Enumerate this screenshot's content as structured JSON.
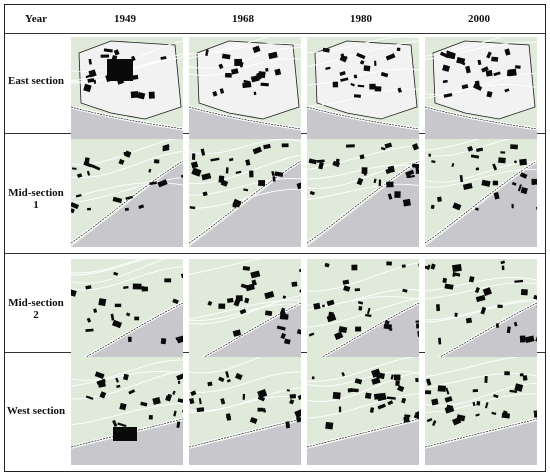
{
  "header": {
    "year_label": "Year",
    "years": [
      "1949",
      "1968",
      "1980",
      "2000"
    ]
  },
  "rows": [
    {
      "label": "East section"
    },
    {
      "label": "Mid-section 1"
    },
    {
      "label": "Mid-section 2"
    },
    {
      "label": "West section"
    }
  ],
  "colors": {
    "land": "#dfeadb",
    "water": "#c7c7cc",
    "building": "#0a0a0a",
    "road": "#ffffff",
    "outline": "#1a1a1a"
  }
}
